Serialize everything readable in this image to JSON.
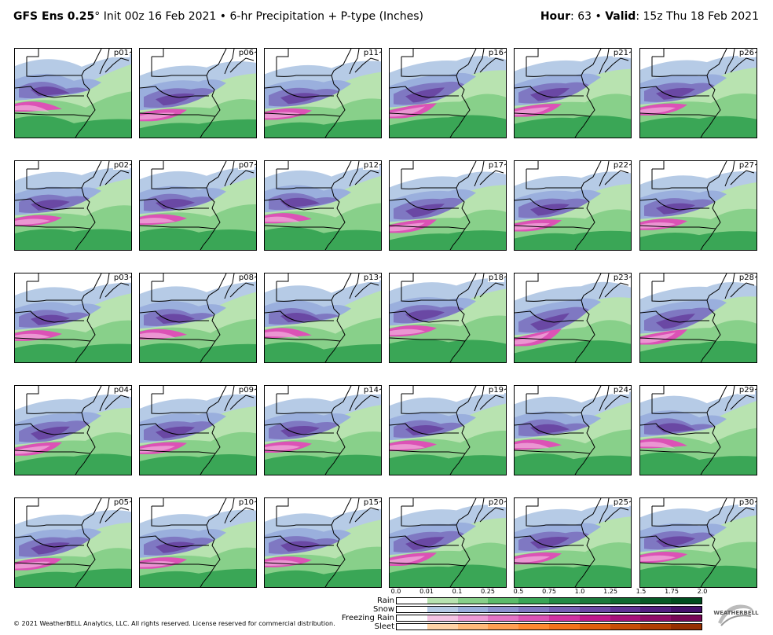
{
  "header": {
    "model": "GFS Ens 0.25",
    "degree": "°",
    "init": " Init 00z 16 Feb 2021 • 6-hr Precipitation + P-type (Inches)",
    "hour_label": "Hour",
    "hour_value": ": 63 • ",
    "valid_label": "Valid",
    "valid_value": ": 15z Thu 18 Feb 2021"
  },
  "members": [
    [
      "p01",
      "p06",
      "p11",
      "p16",
      "p21",
      "p26"
    ],
    [
      "p02",
      "p07",
      "p12",
      "p17",
      "p22",
      "p27"
    ],
    [
      "p03",
      "p08",
      "p13",
      "p18",
      "p23",
      "p28"
    ],
    [
      "p04",
      "p09",
      "p14",
      "p19",
      "p24",
      "p29"
    ],
    [
      "p05",
      "p10",
      "p15",
      "p20",
      "p25",
      "p30"
    ]
  ],
  "legend": {
    "ticks": [
      "0.0",
      "0.01",
      "0.1",
      "0.25",
      "0.5",
      "0.75",
      "1.0",
      "1.25",
      "1.5",
      "1.75",
      "2.0"
    ],
    "rows": [
      {
        "label": "Rain",
        "colors": [
          "#ffffff",
          "#b8e3b0",
          "#88d08a",
          "#5cbc6a",
          "#3aa656",
          "#238b45",
          "#1b7a3a",
          "#0f6a30",
          "#075a26",
          "#004d1f"
        ]
      },
      {
        "label": "Snow",
        "colors": [
          "#ffffff",
          "#b6cbe6",
          "#9aafdd",
          "#8c93d0",
          "#7f78c2",
          "#7460b4",
          "#6a48a4",
          "#5e3294",
          "#511e80",
          "#44106a"
        ]
      },
      {
        "label": "Freezing Rain",
        "colors": [
          "#ffffff",
          "#f5c4e4",
          "#ee9ad6",
          "#e574c6",
          "#dc52b6",
          "#d132a2",
          "#c0188c",
          "#a8107a",
          "#900a68",
          "#780656"
        ]
      },
      {
        "label": "Sleet",
        "colors": [
          "#ffffff",
          "#ffd3a6",
          "#ffba7a",
          "#ffa052",
          "#ff8a30",
          "#f4741a",
          "#e0600c",
          "#c84e06",
          "#b03e02",
          "#962f00"
        ]
      }
    ]
  },
  "copyright": "© 2021 WeatherBELL Analytics, LLC. All rights reserved. License reserved for commercial distribution.",
  "logo_text": "WEATHERBELL"
}
